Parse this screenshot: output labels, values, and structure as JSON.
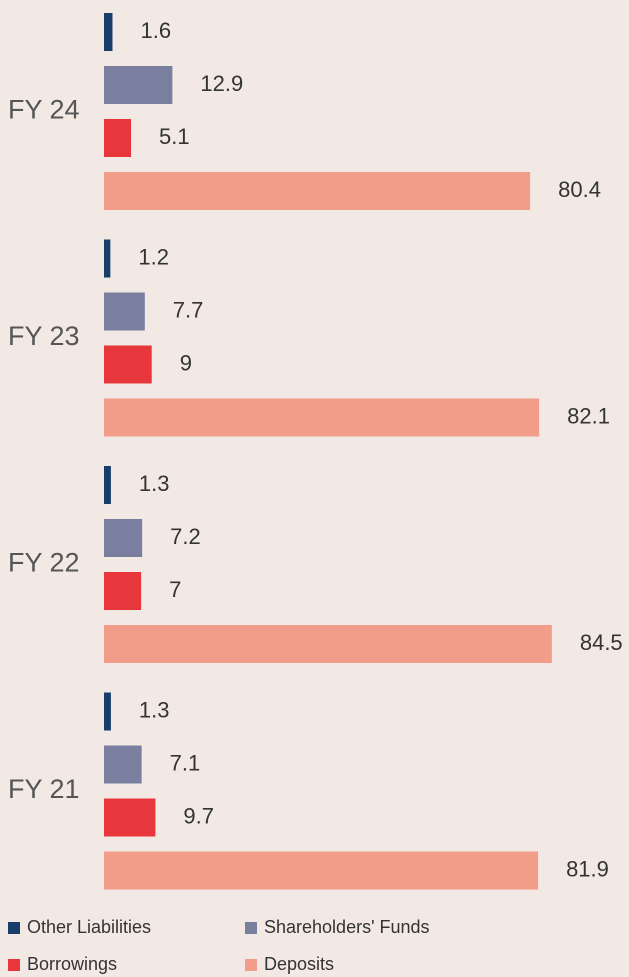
{
  "chart_data": {
    "type": "bar",
    "orientation": "horizontal",
    "categories": [
      "FY 24",
      "FY 23",
      "FY 22",
      "FY 21"
    ],
    "series": [
      {
        "name": "Other Liabilities",
        "color": "#173e6b",
        "values": [
          1.6,
          1.2,
          1.3,
          1.3
        ]
      },
      {
        "name": "Shareholders' Funds",
        "color": "#7a7fa0",
        "values": [
          12.9,
          7.7,
          7.2,
          7.1
        ]
      },
      {
        "name": "Borrowings",
        "color": "#e8373c",
        "values": [
          5.1,
          9,
          7,
          9.7
        ]
      },
      {
        "name": "Deposits",
        "color": "#f29c8a",
        "values": [
          80.4,
          82.1,
          84.5,
          81.9
        ]
      }
    ]
  }
}
